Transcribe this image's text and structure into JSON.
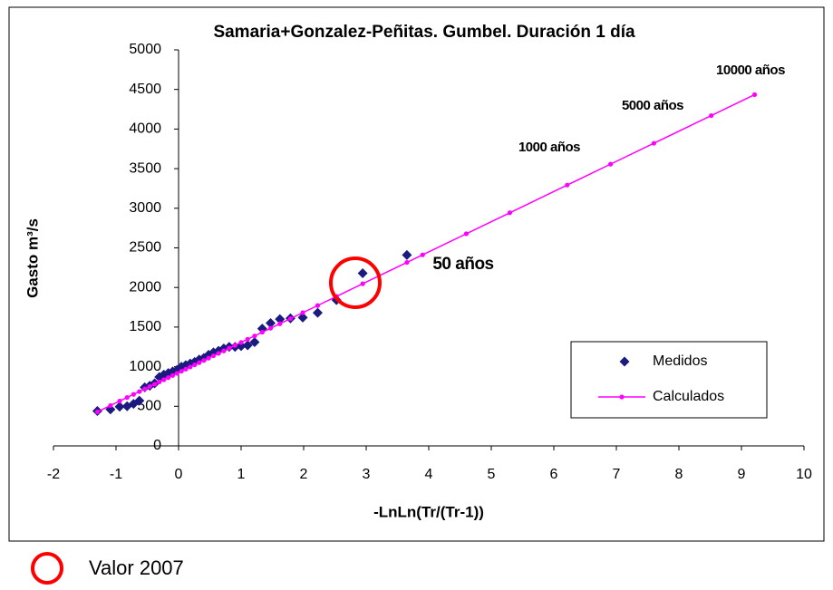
{
  "chart_data": {
    "type": "scatter",
    "title": "Samaria+Gonzalez-Peñitas. Gumbel. Duración 1 día",
    "x_label": "-LnLn(Tr/(Tr-1))",
    "y_label": "Gasto m³/s",
    "xlim": [
      -2,
      10
    ],
    "xticks": [
      -2,
      -1,
      0,
      1,
      2,
      3,
      4,
      5,
      6,
      7,
      8,
      9,
      10
    ],
    "ylim": [
      0,
      5000
    ],
    "yticks": [
      0,
      500,
      1000,
      1500,
      2000,
      2500,
      3000,
      3500,
      4000,
      4500,
      5000
    ],
    "legend": "lower right",
    "series": [
      {
        "name": "Medidos",
        "color": "#1a1a80",
        "marker": "diamond",
        "x": [
          -1.298,
          -1.089,
          -0.942,
          -0.823,
          -0.72,
          -0.627,
          -0.541,
          -0.46,
          -0.383,
          -0.308,
          -0.236,
          -0.164,
          -0.094,
          -0.024,
          0.046,
          0.115,
          0.186,
          0.257,
          0.33,
          0.404,
          0.48,
          0.558,
          0.638,
          0.723,
          0.81,
          0.903,
          1.0,
          1.104,
          1.216,
          1.338,
          1.471,
          1.62,
          1.789,
          1.986,
          2.224,
          2.525,
          2.944,
          3.651
        ],
        "values": [
          440,
          460,
          495,
          500,
          530,
          570,
          740,
          760,
          790,
          870,
          900,
          920,
          940,
          960,
          1000,
          1020,
          1040,
          1060,
          1090,
          1110,
          1150,
          1180,
          1200,
          1230,
          1250,
          1250,
          1260,
          1270,
          1310,
          1480,
          1550,
          1600,
          1610,
          1620,
          1680,
          1840,
          2180,
          2410
        ]
      },
      {
        "name": "Calculados",
        "color": "#ff00ff",
        "marker": "line",
        "x": [
          -1.298,
          -1.089,
          -0.942,
          -0.823,
          -0.72,
          -0.627,
          -0.541,
          -0.46,
          -0.383,
          -0.308,
          -0.236,
          -0.164,
          -0.094,
          -0.024,
          0.046,
          0.115,
          0.186,
          0.257,
          0.33,
          0.404,
          0.48,
          0.558,
          0.638,
          0.723,
          0.81,
          0.903,
          1.0,
          1.104,
          1.216,
          1.338,
          1.471,
          1.62,
          1.789,
          1.986,
          2.224,
          2.525,
          2.944,
          3.651,
          3.902,
          4.6,
          5.296,
          6.214,
          6.907,
          7.6,
          8.517,
          9.21
        ],
        "values": [
          430,
          510,
          566,
          611,
          651,
          686,
          719,
          750,
          779,
          808,
          835,
          862,
          889,
          916,
          943,
          969,
          996,
          1023,
          1051,
          1079,
          1108,
          1138,
          1168,
          1200,
          1234,
          1269,
          1306,
          1346,
          1388,
          1435,
          1485,
          1542,
          1607,
          1682,
          1772,
          1887,
          2047,
          2316,
          2412,
          2678,
          2943,
          3293,
          3557,
          3821,
          4170,
          4434
        ]
      }
    ],
    "annotations": [
      "10000 años",
      "5000 años",
      "1000 años",
      "50 años"
    ],
    "circle_label": "Valor 2007"
  }
}
